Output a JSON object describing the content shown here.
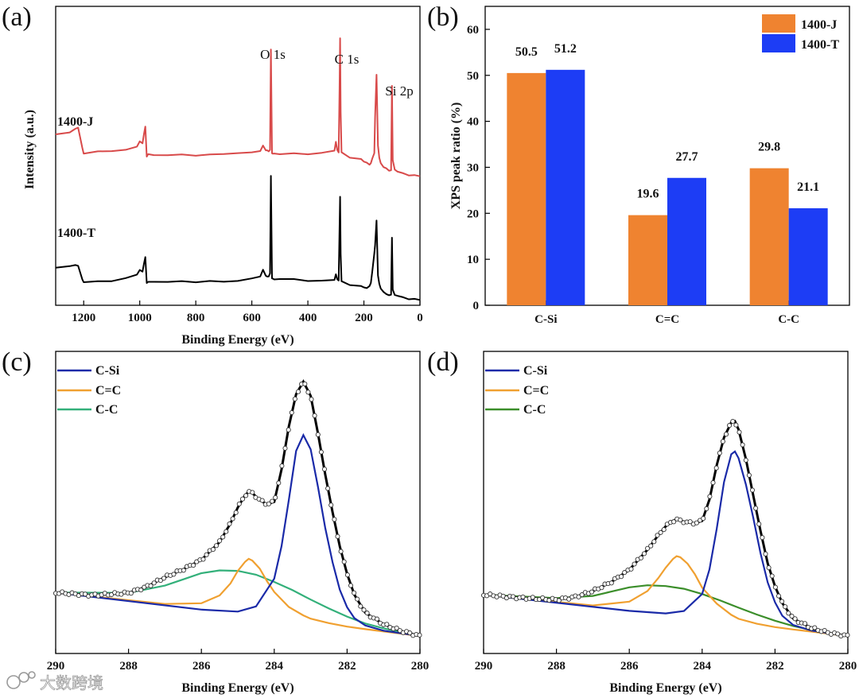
{
  "panel_labels": [
    "(a)",
    "(b)",
    "(c)",
    "(d)"
  ],
  "watermark": {
    "text": "大数跨境"
  },
  "colors": {
    "j_curve": "#d84a4a",
    "t_curve": "#000000",
    "bar_j": "#ef8330",
    "bar_t": "#1d3df5",
    "c_si": "#1a2aa8",
    "c_eq_c": "#f0a030",
    "c_c_c": "#33b07a",
    "d_c_c": "#3b8e2a"
  },
  "chart_data": [
    {
      "type": "line",
      "panel": "(a)",
      "xlabel": "Binding Energy (eV)",
      "ylabel": "Intensity (a.u.)",
      "xlim": [
        1300,
        0
      ],
      "x_ticks": [
        1200,
        1000,
        800,
        600,
        400,
        200,
        0
      ],
      "y_ticks_shown": false,
      "peak_labels": [
        {
          "text": "O 1s",
          "x": 532
        },
        {
          "text": "C 1s",
          "x": 285
        },
        {
          "text": "Si 2p",
          "x": 100
        }
      ],
      "series": [
        {
          "name": "1400-J",
          "x": [
            1300,
            1250,
            1230,
            1220,
            1205,
            1200,
            1150,
            1100,
            1050,
            1010,
            1000,
            990,
            985,
            980,
            975,
            970,
            950,
            900,
            850,
            800,
            750,
            700,
            650,
            600,
            570,
            560,
            550,
            545,
            540,
            535,
            532,
            528,
            525,
            520,
            500,
            450,
            400,
            350,
            305,
            300,
            295,
            290,
            287,
            285,
            283,
            280,
            250,
            210,
            200,
            190,
            180,
            175,
            170,
            163,
            160,
            155,
            150,
            145,
            140,
            130,
            120,
            110,
            103,
            100,
            97,
            90,
            80,
            60,
            40,
            20,
            0
          ],
          "y": [
            20,
            21,
            23,
            23,
            14,
            11,
            12,
            12.5,
            13,
            15,
            17,
            16,
            20,
            23,
            10,
            11,
            11,
            11,
            11,
            10.5,
            10.5,
            11,
            11.5,
            12,
            13,
            15,
            13,
            12.5,
            12,
            13,
            58,
            12,
            11.5,
            11.5,
            11,
            11,
            11,
            11.5,
            13,
            17,
            13,
            12,
            40,
            63,
            30,
            12,
            10,
            9,
            8,
            7,
            6,
            7,
            9,
            12,
            28,
            47,
            15,
            9,
            7,
            5,
            5,
            4,
            4,
            42,
            8,
            4,
            3,
            2.5,
            2,
            1.8,
            1.5
          ]
        },
        {
          "name": "1400-T",
          "x": [
            1300,
            1250,
            1230,
            1220,
            1205,
            1200,
            1150,
            1100,
            1050,
            1010,
            1000,
            990,
            985,
            980,
            975,
            970,
            950,
            900,
            850,
            800,
            750,
            700,
            650,
            600,
            570,
            560,
            550,
            545,
            540,
            535,
            532,
            528,
            525,
            520,
            500,
            450,
            400,
            350,
            305,
            300,
            295,
            290,
            287,
            285,
            283,
            280,
            250,
            210,
            200,
            190,
            180,
            175,
            170,
            163,
            160,
            155,
            150,
            145,
            140,
            130,
            120,
            110,
            103,
            100,
            97,
            90,
            80,
            60,
            40,
            20,
            0
          ],
          "y": [
            18,
            19,
            20,
            19,
            12,
            10,
            10.5,
            11,
            12.5,
            15,
            17,
            16,
            20,
            23,
            10,
            10.5,
            11,
            11,
            11,
            10.5,
            10.5,
            10.5,
            11,
            12.5,
            14,
            17,
            14,
            13,
            13,
            15,
            66,
            13,
            12.5,
            12,
            12,
            11.5,
            11,
            11,
            12,
            15,
            12,
            11.5,
            38,
            55,
            25,
            11,
            9.5,
            8.5,
            8,
            7,
            8,
            10,
            16,
            26,
            30,
            43,
            14,
            9,
            7,
            5,
            4.5,
            4,
            4,
            34,
            6,
            3.5,
            3,
            2.5,
            2,
            1.8,
            1.5
          ]
        }
      ]
    },
    {
      "type": "bar",
      "panel": "(b)",
      "categories": [
        "C-Si",
        "C=C",
        "C-C"
      ],
      "series": [
        {
          "name": "1400-J",
          "values": [
            50.5,
            19.6,
            29.8
          ]
        },
        {
          "name": "1400-T",
          "values": [
            51.2,
            27.7,
            21.1
          ]
        }
      ],
      "ylabel": "XPS peak ratio (%)",
      "xlabel": "",
      "ylim": [
        0,
        65
      ],
      "y_ticks": [
        0,
        10,
        20,
        30,
        40,
        50,
        60
      ],
      "data_labels": [
        "50.5",
        "51.2",
        "19.6",
        "27.7",
        "29.8",
        "21.1"
      ],
      "legend": "top-right"
    },
    {
      "type": "line",
      "panel": "(c)",
      "xlabel": "Binding Energy (eV)",
      "xlim": [
        290,
        280
      ],
      "x_ticks": [
        290,
        288,
        286,
        284,
        282,
        280
      ],
      "legend": "top-left",
      "series": [
        {
          "name": "C-Si",
          "x": [
            290,
            286,
            285,
            284.5,
            284,
            283.8,
            283.6,
            283.4,
            283.2,
            283,
            282.8,
            282.6,
            282.4,
            282.2,
            282,
            281.8,
            281.5,
            281,
            280
          ],
          "y": [
            0,
            0.1,
            0.8,
            3,
            12,
            22,
            36,
            51,
            56,
            52,
            41,
            29,
            19,
            11,
            6,
            3,
            1.2,
            0.3,
            0
          ]
        },
        {
          "name": "C=C",
          "x": [
            290,
            287,
            286,
            285.5,
            285.2,
            285,
            284.8,
            284.7,
            284.6,
            284.4,
            284.2,
            284,
            283.6,
            283.2,
            283,
            282.5,
            282,
            281.5,
            280
          ],
          "y": [
            0,
            0.5,
            2,
            5,
            9,
            13,
            16,
            17,
            16.6,
            14.5,
            11,
            8,
            4,
            2,
            1.3,
            0.6,
            0.2,
            0.1,
            0
          ]
        },
        {
          "name": "C-C",
          "x": [
            290,
            288,
            287,
            286.5,
            286,
            285.5,
            285,
            284.5,
            284,
            283.5,
            283,
            282.5,
            282,
            281.5,
            281,
            280.5,
            280
          ],
          "y": [
            0,
            2.5,
            6,
            8.5,
            11,
            12.5,
            13,
            12.5,
            11,
            9.2,
            7,
            5,
            3.2,
            1.8,
            1,
            0.4,
            0
          ]
        },
        {
          "name": "experimental",
          "x": [
            290,
            289,
            288,
            287.5,
            287,
            286.5,
            286,
            285.5,
            285.2,
            285,
            284.8,
            284.7,
            284.6,
            284.4,
            284.2,
            284,
            283.8,
            283.6,
            283.4,
            283.2,
            283,
            282.8,
            282.6,
            282.4,
            282.2,
            282,
            281.8,
            281.5,
            281,
            280.5,
            280
          ],
          "y": [
            0,
            0.5,
            2.5,
            5,
            8.5,
            11.5,
            15,
            21,
            27,
            32,
            36,
            37,
            36.8,
            35,
            34,
            35,
            45,
            58,
            68,
            72,
            68,
            57,
            45,
            34,
            24,
            16,
            10,
            5,
            2.2,
            0.8,
            0
          ]
        }
      ]
    },
    {
      "type": "line",
      "panel": "(d)",
      "xlabel": "Binding Energy (eV)",
      "xlim": [
        290,
        280
      ],
      "x_ticks": [
        290,
        288,
        286,
        284,
        282,
        280
      ],
      "legend": "top-left",
      "series": [
        {
          "name": "C-Si",
          "x": [
            290,
            286,
            285,
            284.5,
            284,
            283.8,
            283.6,
            283.4,
            283.2,
            283.1,
            283,
            282.8,
            282.6,
            282.4,
            282.2,
            282,
            281.8,
            281.5,
            281,
            280
          ],
          "y": [
            0,
            0.1,
            0.6,
            2,
            8,
            16,
            29,
            44,
            53,
            54,
            52,
            44,
            34,
            23,
            14,
            8,
            4,
            1.5,
            0.4,
            0
          ]
        },
        {
          "name": "C=C",
          "x": [
            290,
            287,
            286,
            285.5,
            285.2,
            285,
            284.8,
            284.7,
            284.6,
            284.4,
            284.2,
            284,
            283.6,
            283.2,
            283,
            282.5,
            282,
            281.5,
            280
          ],
          "y": [
            0,
            0.5,
            3,
            7,
            11.5,
            15,
            18,
            19,
            18.8,
            17,
            14,
            10,
            5.5,
            2.5,
            1.5,
            0.6,
            0.2,
            0.1,
            0
          ]
        },
        {
          "name": "C-C",
          "x": [
            290,
            288,
            287,
            286.5,
            286,
            285.5,
            285,
            284.5,
            284,
            283.5,
            283,
            282.5,
            282,
            281.5,
            281,
            280.5,
            280
          ],
          "y": [
            0,
            1.5,
            3.5,
            5.5,
            7.5,
            8.8,
            9.2,
            9,
            8,
            6.6,
            5,
            3.5,
            2.2,
            1.2,
            0.6,
            0.2,
            0
          ]
        },
        {
          "name": "experimental",
          "x": [
            290,
            289,
            288,
            287.5,
            287,
            286.5,
            286,
            285.5,
            285.2,
            285,
            284.8,
            284.7,
            284.6,
            284.4,
            284.2,
            284,
            283.8,
            283.6,
            283.4,
            283.2,
            283.1,
            283,
            282.8,
            282.6,
            282.4,
            282.2,
            282,
            281.8,
            281.5,
            281,
            280.5,
            280
          ],
          "y": [
            0,
            0.3,
            1,
            2.5,
            5,
            8.5,
            13,
            20,
            25,
            28,
            30,
            30.5,
            30.3,
            30,
            30,
            31,
            38,
            49,
            58,
            63,
            63.5,
            61,
            52,
            41,
            30,
            20,
            13,
            8,
            3.5,
            1.2,
            0.3,
            0
          ]
        }
      ]
    }
  ]
}
